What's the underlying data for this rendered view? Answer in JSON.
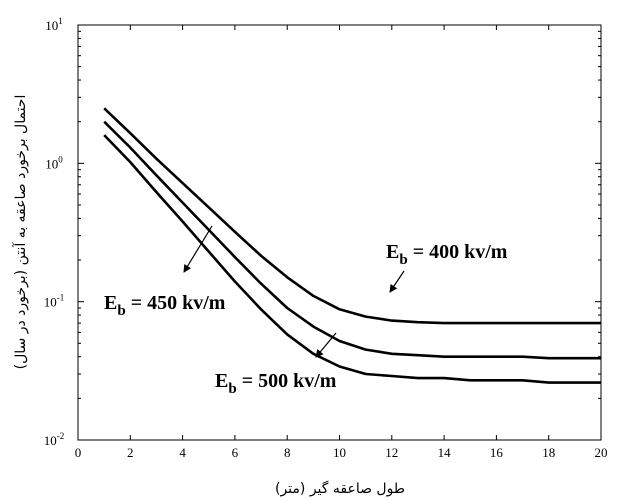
{
  "chart_data": {
    "type": "line",
    "xlabel": "طول صاعقه گیر (متر)",
    "ylabel": "احتمال برخورد صاعقه به آنتن (برخورد در سال)",
    "xlim": [
      0,
      20
    ],
    "ylim": [
      0.01,
      10
    ],
    "yscale": "log",
    "grid": false,
    "x_ticks": [
      "0",
      "2",
      "4",
      "6",
      "8",
      "10",
      "12",
      "14",
      "16",
      "18",
      "20"
    ],
    "y_ticks": [
      {
        "base": "10",
        "exp": "-2"
      },
      {
        "base": "10",
        "exp": "-1"
      },
      {
        "base": "10",
        "exp": "0"
      },
      {
        "base": "10",
        "exp": "1"
      }
    ],
    "series": [
      {
        "label": "E_b = 400 kv/m",
        "x": [
          1,
          2,
          3,
          4,
          5,
          6,
          7,
          8,
          9,
          10,
          11,
          12,
          13,
          14,
          15,
          16,
          17,
          18,
          19,
          20
        ],
        "y": [
          2.5,
          1.65,
          1.08,
          0.72,
          0.48,
          0.32,
          0.215,
          0.15,
          0.11,
          0.088,
          0.078,
          0.073,
          0.071,
          0.07,
          0.07,
          0.07,
          0.07,
          0.07,
          0.07,
          0.07
        ]
      },
      {
        "label": "E_b = 450 kv/m",
        "x": [
          1,
          2,
          3,
          4,
          5,
          6,
          7,
          8,
          9,
          10,
          11,
          12,
          13,
          14,
          15,
          16,
          17,
          18,
          19,
          20
        ],
        "y": [
          2.0,
          1.3,
          0.82,
          0.52,
          0.33,
          0.21,
          0.135,
          0.09,
          0.066,
          0.052,
          0.045,
          0.042,
          0.041,
          0.04,
          0.04,
          0.04,
          0.04,
          0.039,
          0.039,
          0.039
        ]
      },
      {
        "label": "E_b = 500 kv/m",
        "x": [
          1,
          2,
          3,
          4,
          5,
          6,
          7,
          8,
          9,
          10,
          11,
          12,
          13,
          14,
          15,
          16,
          17,
          18,
          19,
          20
        ],
        "y": [
          1.6,
          1.02,
          0.62,
          0.38,
          0.23,
          0.14,
          0.088,
          0.058,
          0.042,
          0.034,
          0.03,
          0.029,
          0.028,
          0.028,
          0.027,
          0.027,
          0.027,
          0.026,
          0.026,
          0.026
        ]
      }
    ],
    "annotations": [
      {
        "main": "E",
        "sub": "b",
        "rest": " = 400 kv/m",
        "series": 0
      },
      {
        "main": "E",
        "sub": "b",
        "rest": " = 450 kv/m",
        "series": 1
      },
      {
        "main": "E",
        "sub": "b",
        "rest": " = 500 kv/m",
        "series": 2
      }
    ]
  }
}
